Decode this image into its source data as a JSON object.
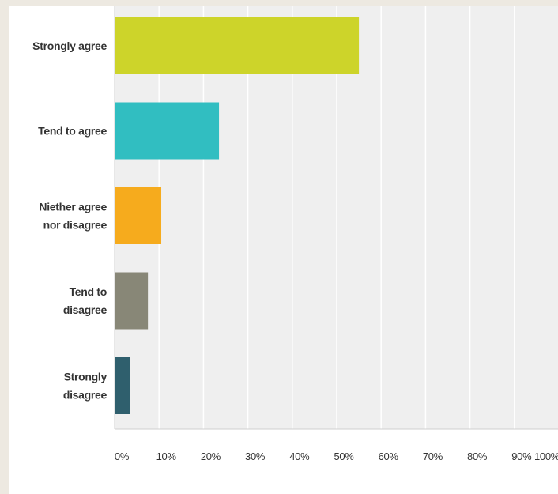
{
  "chart_data": {
    "type": "bar",
    "orientation": "horizontal",
    "categories": [
      [
        "Strongly agree"
      ],
      [
        "Tend to agree"
      ],
      [
        "Niether agree",
        "nor disagree"
      ],
      [
        "Tend to",
        "disagree"
      ],
      [
        "Strongly",
        "disagree"
      ]
    ],
    "values": [
      55,
      23.5,
      10.5,
      7.5,
      3.5
    ],
    "colors": [
      "#cdd42a",
      "#31bec1",
      "#f6ab1d",
      "#888777",
      "#2f5f6d"
    ],
    "xlim": [
      0,
      100
    ],
    "xticks": [
      "0%",
      "10%",
      "20%",
      "30%",
      "40%",
      "50%",
      "60%",
      "70%",
      "80%",
      "90%",
      "100%"
    ],
    "grid": true,
    "title": "",
    "xlabel": "",
    "ylabel": ""
  }
}
